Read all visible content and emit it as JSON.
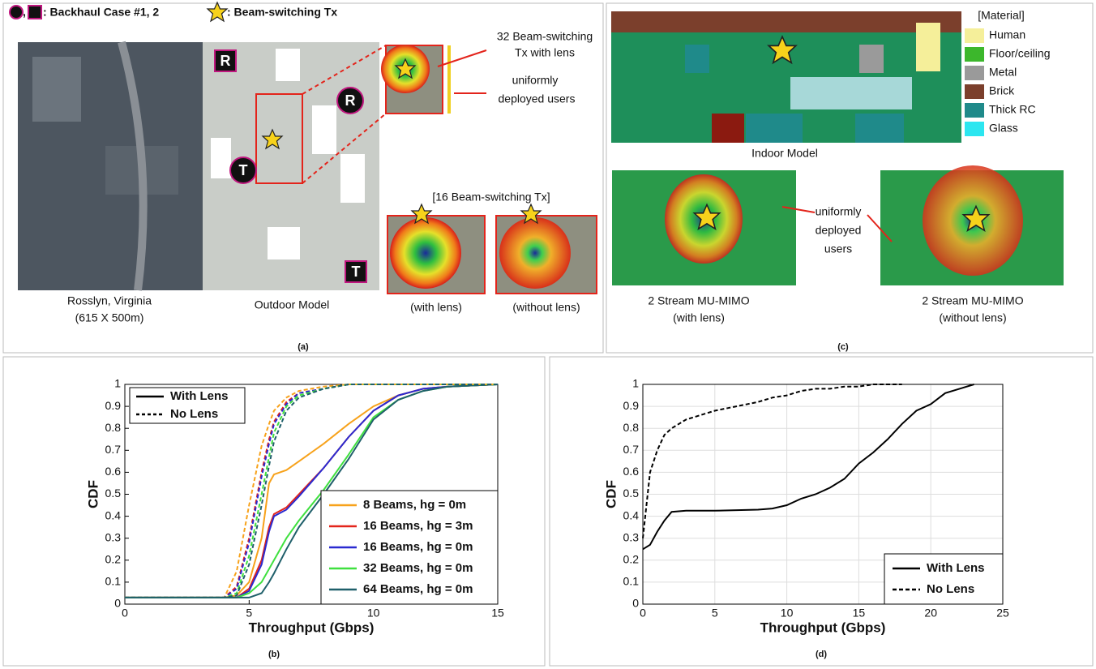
{
  "panel_a": {
    "backhaul_legend": ": Backhaul Case #1, 2",
    "tx_legend": ": Beam-switching Tx",
    "markers": [
      "R",
      "R",
      "T",
      "T"
    ],
    "tx_lens_label": [
      "32 Beam-switching",
      "Tx with lens"
    ],
    "users_label": [
      "uniformly",
      "deployed users"
    ],
    "inset_title": "[16 Beam-switching Tx]",
    "with_lens": "(with lens)",
    "without_lens": "(without lens)",
    "map_caption": [
      "Rosslyn, Virginia",
      "(615 X 500m)"
    ],
    "model_caption": "Outdoor Model",
    "caption": "(a)"
  },
  "panel_c": {
    "legend_title": "[Material]",
    "materials": [
      {
        "name": "Human",
        "color": "#f5ef9a"
      },
      {
        "name": "Floor/ceiling",
        "color": "#3cb72c"
      },
      {
        "name": "Metal",
        "color": "#9a9a9a"
      },
      {
        "name": "Brick",
        "color": "#7b3f2c"
      },
      {
        "name": "Thick RC",
        "color": "#1f8a8a"
      },
      {
        "name": "Glass",
        "color": "#2ce6f0"
      }
    ],
    "model_caption": "Indoor Model",
    "users_label": [
      "uniformly",
      "deployed",
      "users"
    ],
    "left_caption": [
      "2 Stream MU-MIMO",
      "(with lens)"
    ],
    "right_caption": [
      "2 Stream MU-MIMO",
      "(without lens)"
    ],
    "caption": "(c)"
  },
  "chart_data": [
    {
      "type": "line",
      "caption": "(b)",
      "xlabel": "Throughput (Gbps)",
      "ylabel": "CDF",
      "xlim": [
        0,
        15
      ],
      "ylim": [
        0,
        1
      ],
      "xticks": [
        0,
        5,
        10,
        15
      ],
      "yticks": [
        0,
        0.1,
        0.2,
        0.3,
        0.4,
        0.5,
        0.6,
        0.7,
        0.8,
        0.9,
        1
      ],
      "grid": false,
      "linestyle_legend": [
        "With Lens",
        "No Lens"
      ],
      "legend": "lower right",
      "x": [
        0,
        4,
        4.5,
        5,
        5.5,
        5.8,
        6,
        6.5,
        7,
        8,
        9,
        10,
        11,
        12,
        13,
        15
      ],
      "series": [
        {
          "name": "8 Beams, hg = 0m",
          "color": "#f7a21b",
          "dash": false,
          "values": [
            0.03,
            0.03,
            0.04,
            0.1,
            0.3,
            0.55,
            0.59,
            0.61,
            0.65,
            0.73,
            0.82,
            0.9,
            0.95,
            0.98,
            0.99,
            1
          ]
        },
        {
          "name": "16 Beams, hg = 3m",
          "color": "#e3241b",
          "dash": false,
          "values": [
            0.03,
            0.03,
            0.03,
            0.07,
            0.2,
            0.35,
            0.41,
            0.44,
            0.5,
            0.62,
            0.76,
            0.88,
            0.95,
            0.98,
            0.99,
            1
          ]
        },
        {
          "name": "16 Beams, hg = 0m",
          "color": "#2a2ad0",
          "dash": false,
          "values": [
            0.03,
            0.03,
            0.03,
            0.06,
            0.18,
            0.33,
            0.4,
            0.43,
            0.49,
            0.62,
            0.76,
            0.88,
            0.95,
            0.98,
            0.99,
            1
          ]
        },
        {
          "name": "32 Beams, hg = 0m",
          "color": "#3fe03f",
          "dash": false,
          "values": [
            0.03,
            0.03,
            0.03,
            0.05,
            0.1,
            0.16,
            0.2,
            0.3,
            0.38,
            0.52,
            0.68,
            0.85,
            0.93,
            0.97,
            0.99,
            1
          ]
        },
        {
          "name": "64 Beams, hg = 0m",
          "color": "#1f5f6a",
          "dash": false,
          "values": [
            0.03,
            0.03,
            0.03,
            0.03,
            0.05,
            0.1,
            0.14,
            0.25,
            0.35,
            0.5,
            0.66,
            0.84,
            0.93,
            0.97,
            0.99,
            1
          ]
        },
        {
          "color": "#f7a21b",
          "dash": true,
          "values": [
            0.03,
            0.03,
            0.15,
            0.45,
            0.72,
            0.82,
            0.88,
            0.94,
            0.97,
            0.99,
            1,
            1,
            1,
            1,
            1,
            1
          ]
        },
        {
          "color": "#e3241b",
          "dash": true,
          "values": [
            0.03,
            0.03,
            0.08,
            0.3,
            0.6,
            0.75,
            0.83,
            0.92,
            0.96,
            0.98,
            1,
            1,
            1,
            1,
            1,
            1
          ]
        },
        {
          "color": "#2a2ad0",
          "dash": true,
          "values": [
            0.03,
            0.03,
            0.07,
            0.28,
            0.58,
            0.73,
            0.82,
            0.91,
            0.96,
            0.98,
            1,
            1,
            1,
            1,
            1,
            1
          ]
        },
        {
          "color": "#3fe03f",
          "dash": true,
          "values": [
            0.03,
            0.03,
            0.05,
            0.22,
            0.5,
            0.67,
            0.78,
            0.9,
            0.95,
            0.98,
            1,
            1,
            1,
            1,
            1,
            1
          ]
        },
        {
          "color": "#1f5f6a",
          "dash": true,
          "values": [
            0.03,
            0.03,
            0.04,
            0.18,
            0.45,
            0.63,
            0.74,
            0.88,
            0.94,
            0.98,
            1,
            1,
            1,
            1,
            1,
            1
          ]
        }
      ]
    },
    {
      "type": "line",
      "caption": "(d)",
      "xlabel": "Throughput (Gbps)",
      "ylabel": "CDF",
      "xlim": [
        0,
        25
      ],
      "ylim": [
        0,
        1
      ],
      "xticks": [
        0,
        5,
        10,
        15,
        20,
        25
      ],
      "yticks": [
        0,
        0.1,
        0.2,
        0.3,
        0.4,
        0.5,
        0.6,
        0.7,
        0.8,
        0.9,
        1
      ],
      "grid": true,
      "legend": "lower right",
      "x": [
        0,
        0.5,
        1,
        1.5,
        2,
        3,
        5,
        8,
        9,
        10,
        11,
        12,
        13,
        14,
        15,
        16,
        17,
        18,
        19,
        20,
        21,
        22,
        23
      ],
      "series": [
        {
          "name": "With Lens",
          "color": "#000000",
          "dash": false,
          "values": [
            0.25,
            0.27,
            0.33,
            0.38,
            0.42,
            0.425,
            0.425,
            0.43,
            0.435,
            0.45,
            0.48,
            0.5,
            0.53,
            0.57,
            0.64,
            0.69,
            0.75,
            0.82,
            0.88,
            0.91,
            0.96,
            0.98,
            1
          ]
        },
        {
          "name": "No Lens",
          "color": "#000000",
          "dash": true,
          "values": [
            0.3,
            0.6,
            0.7,
            0.77,
            0.8,
            0.84,
            0.88,
            0.92,
            0.94,
            0.95,
            0.97,
            0.98,
            0.98,
            0.99,
            0.99,
            1,
            1,
            1,
            null,
            null,
            null,
            null,
            null
          ]
        }
      ]
    }
  ]
}
